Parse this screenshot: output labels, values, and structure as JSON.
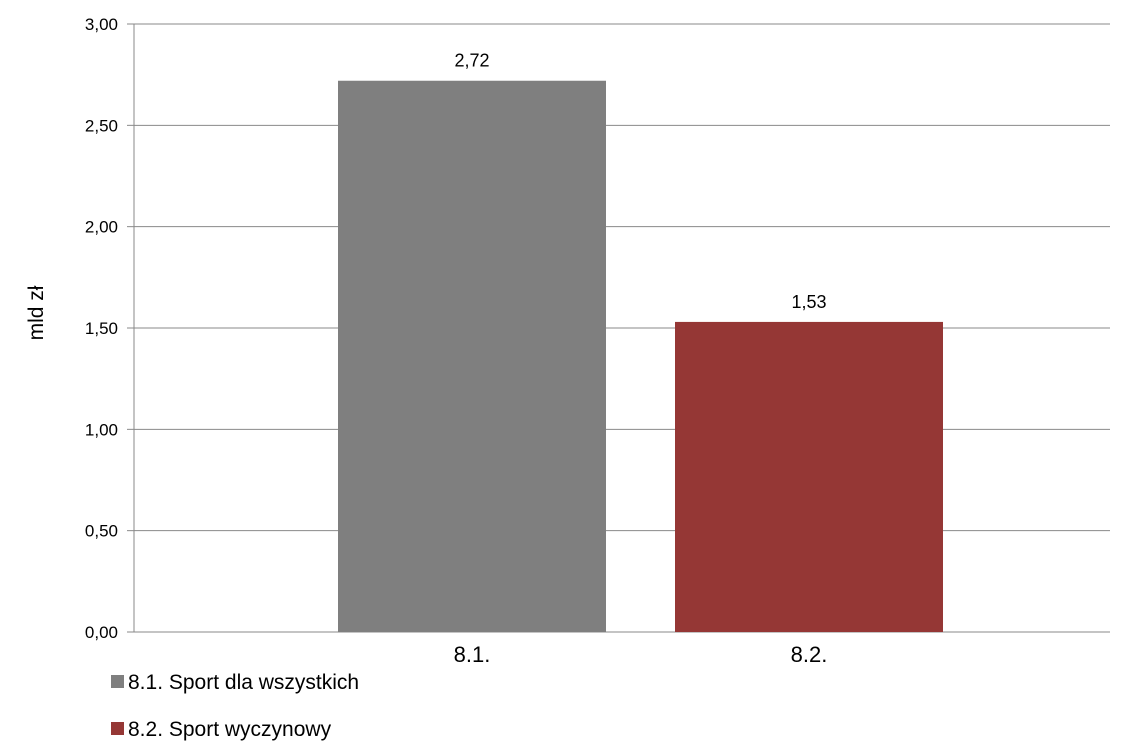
{
  "chart_data": {
    "type": "bar",
    "categories": [
      "8.1.",
      "8.2."
    ],
    "values": [
      2.72,
      1.53
    ],
    "value_labels": [
      "2,72",
      "1,53"
    ],
    "bar_colors": [
      "#7f7f7f",
      "#953735"
    ],
    "ylabel": "mld zł",
    "xlabel": "",
    "ylim": [
      0,
      3.0
    ],
    "yticks": [
      {
        "value": 0,
        "label": "0,00"
      },
      {
        "value": 0.5,
        "label": "0,50"
      },
      {
        "value": 1.0,
        "label": "1,00"
      },
      {
        "value": 1.5,
        "label": "1,50"
      },
      {
        "value": 2.0,
        "label": "2,00"
      },
      {
        "value": 2.5,
        "label": "2,50"
      },
      {
        "value": 3.0,
        "label": "3,00"
      }
    ],
    "grid": true,
    "legend_position": "bottom-left",
    "legend": [
      {
        "label": "8.1. Sport dla wszystkich",
        "color": "#7f7f7f"
      },
      {
        "label": "8.2. Sport wyczynowy",
        "color": "#953735"
      }
    ]
  }
}
